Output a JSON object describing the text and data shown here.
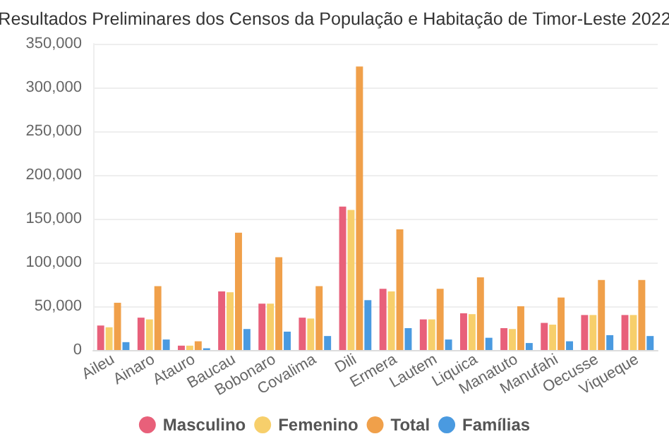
{
  "chart_data": {
    "type": "bar",
    "title": "Resultados Preliminares dos Censos da População e Habitação de Timor-Leste 2022",
    "categories": [
      "Aileu",
      "Ainaro",
      "Atauro",
      "Baucau",
      "Bobonaro",
      "Covalima",
      "Dili",
      "Ermera",
      "Lautem",
      "Liquica",
      "Manatuto",
      "Manufahi",
      "Oecusse",
      "Viqueque"
    ],
    "series": [
      {
        "name": "Masculino",
        "color": "#e8607a",
        "values": [
          28000,
          37000,
          5000,
          67000,
          53000,
          37000,
          164000,
          70000,
          35000,
          42000,
          25000,
          31000,
          40000,
          40000
        ]
      },
      {
        "name": "Femenino",
        "color": "#f7cf6b",
        "values": [
          26000,
          35000,
          5000,
          66000,
          53000,
          36000,
          160000,
          67000,
          35000,
          41000,
          24000,
          29000,
          40000,
          40000
        ]
      },
      {
        "name": "Total",
        "color": "#f0a04a",
        "values": [
          54000,
          73000,
          10000,
          134000,
          106000,
          73000,
          324000,
          138000,
          70000,
          83000,
          50000,
          60000,
          80000,
          80000
        ]
      },
      {
        "name": "Famílias",
        "color": "#4a9ae0",
        "values": [
          9000,
          12000,
          2000,
          24000,
          21000,
          16000,
          57000,
          25000,
          12000,
          14000,
          8000,
          10000,
          17000,
          16000
        ]
      }
    ],
    "ylim": [
      0,
      350000
    ],
    "yticks": [
      0,
      {
        "value": 50000,
        "label": "50,000"
      },
      {
        "value": 100000,
        "label": "100,000"
      },
      {
        "value": 150000,
        "label": "150,000"
      },
      {
        "value": 200000,
        "label": "200,000"
      },
      {
        "value": 250000,
        "label": "250,000"
      },
      {
        "value": 300000,
        "label": "300,000"
      },
      {
        "value": 350000,
        "label": "350,000"
      }
    ],
    "grid": "y",
    "legend": "bottom"
  }
}
